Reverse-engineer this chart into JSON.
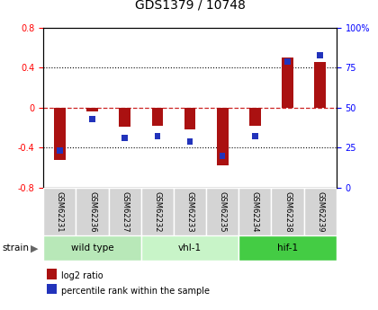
{
  "title": "GDS1379 / 10748",
  "samples": [
    "GSM62231",
    "GSM62236",
    "GSM62237",
    "GSM62232",
    "GSM62233",
    "GSM62235",
    "GSM62234",
    "GSM62238",
    "GSM62239"
  ],
  "log2_ratio": [
    -0.52,
    -0.04,
    -0.19,
    -0.18,
    -0.22,
    -0.58,
    -0.18,
    0.5,
    0.46
  ],
  "percentile_rank": [
    23,
    43,
    31,
    32,
    29,
    20,
    32,
    79,
    83
  ],
  "groups": [
    {
      "label": "wild type",
      "start": 0,
      "end": 3,
      "color": "#b8e8b8"
    },
    {
      "label": "vhl-1",
      "start": 3,
      "end": 6,
      "color": "#c8f4c8"
    },
    {
      "label": "hif-1",
      "start": 6,
      "end": 9,
      "color": "#44cc44"
    }
  ],
  "ylim_left": [
    -0.8,
    0.8
  ],
  "ylim_right": [
    0,
    100
  ],
  "yticks_left": [
    -0.8,
    -0.4,
    0.0,
    0.4,
    0.8
  ],
  "yticks_right": [
    0,
    25,
    50,
    75,
    100
  ],
  "bar_color_red": "#aa1111",
  "bar_color_blue": "#2233bb",
  "hline_color": "#cc2222",
  "grid_color": "#000000",
  "bg_color": "#ffffff",
  "legend_red_label": "log2 ratio",
  "legend_blue_label": "percentile rank within the sample",
  "strain_label": "strain",
  "red_bar_width": 0.35,
  "blue_bar_width": 0.18
}
